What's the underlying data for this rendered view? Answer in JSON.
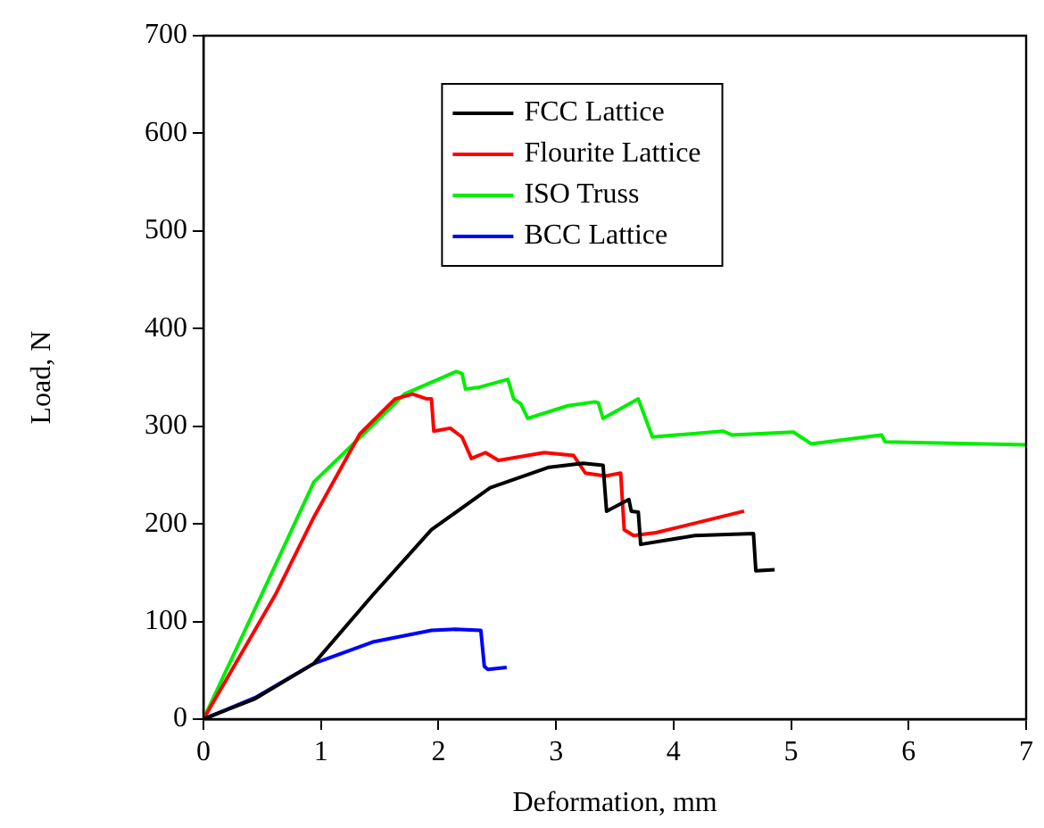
{
  "chart_data": {
    "type": "line",
    "xlabel": "Deformation, mm",
    "ylabel": "Load, N",
    "xlim": [
      0,
      7
    ],
    "ylim": [
      0,
      700
    ],
    "xticks": [
      0,
      1,
      2,
      3,
      4,
      5,
      6,
      7
    ],
    "yticks": [
      0,
      100,
      200,
      300,
      400,
      500,
      600,
      700
    ],
    "grid": false,
    "legend": "top right",
    "marker": "none",
    "line_style": "solid",
    "series": [
      {
        "name": "FCC Lattice",
        "color": "#000000",
        "x": [
          0,
          0.44,
          0.94,
          1.44,
          1.94,
          2.44,
          2.94,
          3.23,
          3.4,
          3.43,
          3.62,
          3.64,
          3.7,
          3.72,
          4.18,
          4.68,
          4.7,
          4.86
        ],
        "values": [
          0,
          21,
          57,
          127,
          194,
          237,
          258,
          262,
          260,
          213,
          225,
          213,
          212,
          179,
          188,
          190,
          152,
          153
        ]
      },
      {
        "name": "Flourite Lattice",
        "color": "#ff0000",
        "x": [
          0,
          0.61,
          0.94,
          1.33,
          1.63,
          1.78,
          1.9,
          1.94,
          1.96,
          2.1,
          2.2,
          2.28,
          2.4,
          2.51,
          2.9,
          3.15,
          3.25,
          3.42,
          3.55,
          3.58,
          3.66,
          3.85,
          4.6
        ],
        "values": [
          0,
          127,
          207,
          292,
          328,
          333,
          328,
          328,
          295,
          298,
          289,
          267,
          273,
          265,
          273,
          270,
          252,
          249,
          252,
          194,
          188,
          191,
          213
        ]
      },
      {
        "name": "ISO Truss",
        "color": "#00ee00",
        "x": [
          0,
          0.59,
          0.94,
          1.44,
          1.71,
          2.15,
          2.2,
          2.23,
          2.35,
          2.59,
          2.64,
          2.7,
          2.76,
          3.1,
          3.33,
          3.36,
          3.4,
          3.7,
          3.82,
          4.42,
          4.5,
          5.02,
          5.17,
          5.77,
          5.8,
          7.0
        ],
        "values": [
          0,
          152,
          243,
          301,
          333,
          356,
          354,
          338,
          340,
          348,
          328,
          323,
          308,
          321,
          325,
          324,
          308,
          328,
          289,
          295,
          291,
          294,
          282,
          291,
          284,
          281
        ]
      },
      {
        "name": "BCC Lattice",
        "color": "#0000ff",
        "x": [
          0,
          0.44,
          0.94,
          1.44,
          1.94,
          2.14,
          2.36,
          2.39,
          2.42,
          2.58
        ],
        "values": [
          0,
          22,
          57,
          79,
          91,
          92,
          91,
          54,
          51,
          53
        ]
      }
    ]
  }
}
